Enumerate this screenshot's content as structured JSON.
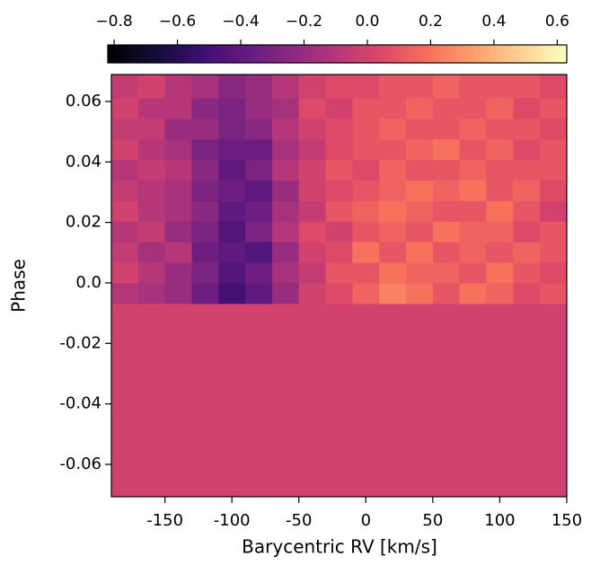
{
  "chart_data": {
    "type": "heatmap",
    "xlabel": "Barycentric RV [km/s]",
    "ylabel": "Phase",
    "colormap": "magma",
    "xlim": [
      -190,
      150
    ],
    "xticks": [
      -150,
      -100,
      -50,
      0,
      50,
      100,
      150
    ],
    "ylim": [
      -0.0707,
      0.0689
    ],
    "yticks": [
      -0.06,
      -0.04,
      -0.02,
      {
        "value": 0,
        "label": "0.0"
      },
      0.02,
      0.04,
      0.06
    ],
    "clim": [
      -0.82,
      0.63
    ],
    "cticks": [
      {
        "value": -0.8,
        "label": "−0.8"
      },
      {
        "value": -0.6,
        "label": "−0.6"
      },
      {
        "value": -0.4,
        "label": "−0.4"
      },
      {
        "value": -0.2,
        "label": "−0.2"
      },
      {
        "value": 0,
        "label": "0.0"
      },
      {
        "value": 0.2,
        "label": "0.2"
      },
      {
        "value": 0.4,
        "label": "0.4"
      },
      {
        "value": 0.6,
        "label": "0.6"
      }
    ],
    "x_edges": [
      -190,
      -170,
      -150,
      -130,
      -110,
      -90,
      -70,
      -50,
      -30,
      -10,
      10,
      30,
      50,
      70,
      90,
      110,
      130,
      150
    ],
    "y_edges": [
      -0.0707,
      -0.0068,
      0.0,
      0.0068,
      0.0136,
      0.0204,
      0.0272,
      0.034,
      0.0408,
      0.0476,
      0.0544,
      0.0612,
      0.0689
    ],
    "z": [
      [
        0,
        0,
        0,
        0,
        0,
        0,
        0,
        0,
        0,
        0,
        0,
        0,
        0,
        0,
        0,
        0,
        0
      ],
      [
        -0.1,
        -0.15,
        -0.2,
        -0.35,
        -0.5,
        -0.4,
        -0.2,
        0.0,
        0.05,
        0.15,
        0.25,
        0.2,
        0.1,
        0.2,
        0.15,
        0.05,
        0.1
      ],
      [
        0.0,
        -0.1,
        -0.2,
        -0.3,
        -0.45,
        -0.35,
        -0.15,
        -0.05,
        0.1,
        0.1,
        0.2,
        0.15,
        0.15,
        0.1,
        0.2,
        0.1,
        0.05
      ],
      [
        -0.05,
        -0.15,
        -0.1,
        -0.35,
        -0.4,
        -0.45,
        -0.2,
        0.0,
        0.05,
        0.2,
        0.1,
        0.2,
        0.1,
        0.15,
        0.1,
        0.15,
        0.1
      ],
      [
        -0.1,
        -0.05,
        -0.2,
        -0.3,
        -0.45,
        -0.3,
        -0.1,
        0.05,
        0.0,
        0.1,
        0.15,
        0.1,
        0.2,
        0.15,
        0.15,
        0.05,
        0.1
      ],
      [
        0.0,
        -0.1,
        -0.15,
        -0.25,
        -0.4,
        -0.35,
        -0.15,
        -0.05,
        0.1,
        0.15,
        0.2,
        0.15,
        0.1,
        0.1,
        0.2,
        0.1,
        0.0
      ],
      [
        -0.05,
        -0.1,
        -0.15,
        -0.3,
        -0.35,
        -0.4,
        -0.2,
        0.0,
        0.05,
        0.1,
        0.15,
        0.2,
        0.15,
        0.2,
        0.1,
        0.15,
        0.05
      ],
      [
        -0.1,
        -0.05,
        -0.1,
        -0.25,
        -0.4,
        -0.3,
        -0.1,
        0.0,
        0.1,
        0.05,
        0.15,
        0.1,
        0.1,
        0.15,
        0.1,
        0.1,
        0.1
      ],
      [
        0.0,
        -0.1,
        -0.15,
        -0.3,
        -0.35,
        -0.35,
        -0.15,
        -0.05,
        0.05,
        0.1,
        0.1,
        0.15,
        0.2,
        0.1,
        0.15,
        0.05,
        0.1
      ],
      [
        -0.05,
        -0.05,
        -0.2,
        -0.2,
        -0.3,
        -0.25,
        -0.1,
        0.0,
        0.05,
        0.1,
        0.15,
        0.1,
        0.1,
        0.15,
        0.1,
        0.1,
        0.05
      ],
      [
        0.0,
        -0.1,
        -0.1,
        -0.25,
        -0.3,
        -0.2,
        -0.15,
        0.05,
        0.0,
        0.1,
        0.1,
        0.15,
        0.1,
        0.1,
        0.15,
        0.05,
        0.1
      ],
      [
        -0.05,
        0.0,
        -0.1,
        -0.15,
        -0.25,
        -0.2,
        -0.1,
        0.0,
        0.05,
        0.05,
        0.1,
        0.1,
        0.15,
        0.1,
        0.1,
        0.1,
        0.05
      ]
    ]
  }
}
